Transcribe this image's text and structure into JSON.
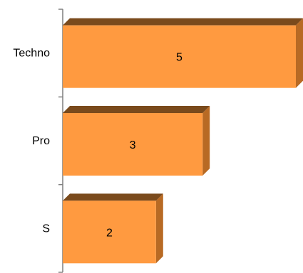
{
  "chart_data": {
    "type": "bar",
    "orientation": "horizontal",
    "style": "3d",
    "categories": [
      "Techno",
      "Pro",
      "S"
    ],
    "values": [
      5,
      3,
      2
    ],
    "value_labels": [
      "5",
      "3",
      "2"
    ],
    "xlim": [
      0,
      5
    ],
    "grid": false,
    "legend": "none",
    "title": "",
    "xlabel": "",
    "ylabel": ""
  },
  "colors": {
    "bar_front": "#ff9a40",
    "bar_top": "#7a4a1c",
    "bar_side": "#b86a24",
    "axis": "#7f7f7f"
  }
}
